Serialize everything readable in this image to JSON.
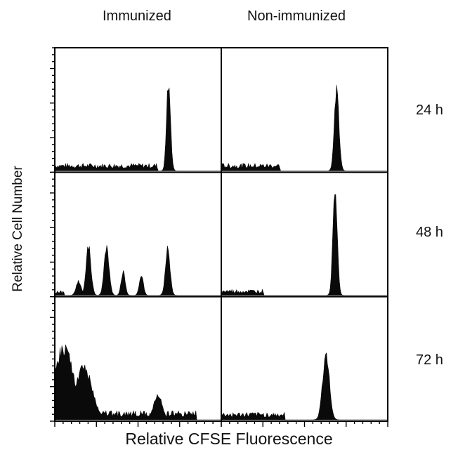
{
  "chart_data": {
    "type": "area",
    "description": "",
    "column_titles": [
      "Immunized",
      "Non-immunized"
    ],
    "row_labels": [
      "24 h",
      "48 h",
      "72 h"
    ],
    "xlabel": "Relative CFSE Fluorescence",
    "ylabel": "Relative Cell Number",
    "x_axis": "relative CFSE fluorescence, 0-1 across each panel (unlabeled ticks)",
    "y_axis": "relative cell number, 0-1 per panel (unlabeled ticks)",
    "panels": [
      {
        "column": "Immunized",
        "row": "24 h",
        "peaks": [
          {
            "x": 0.685,
            "height": 0.78,
            "width": 0.012
          }
        ],
        "baseline": 0.05,
        "baseline_range": [
          0.0,
          0.62
        ]
      },
      {
        "column": "Non-immunized",
        "row": "24 h",
        "peaks": [
          {
            "x": 0.695,
            "height": 0.7,
            "width": 0.014
          }
        ],
        "baseline": 0.05,
        "baseline_range": [
          0.0,
          0.35
        ]
      },
      {
        "column": "Immunized",
        "row": "48 h",
        "peaks": [
          {
            "x": 0.2,
            "height": 0.42,
            "width": 0.015
          },
          {
            "x": 0.31,
            "height": 0.42,
            "width": 0.015
          },
          {
            "x": 0.41,
            "height": 0.2,
            "width": 0.012
          },
          {
            "x": 0.52,
            "height": 0.18,
            "width": 0.012
          },
          {
            "x": 0.68,
            "height": 0.4,
            "width": 0.014
          },
          {
            "x": 0.14,
            "height": 0.12,
            "width": 0.015
          }
        ],
        "baseline": 0.03,
        "baseline_range": [
          0.0,
          0.05
        ]
      },
      {
        "column": "Non-immunized",
        "row": "48 h",
        "peaks": [
          {
            "x": 0.685,
            "height": 0.92,
            "width": 0.013
          }
        ],
        "baseline": 0.04,
        "baseline_range": [
          0.0,
          0.25
        ]
      },
      {
        "column": "Immunized",
        "row": "72 h",
        "peaks": [
          {
            "x": 0.05,
            "height": 0.62,
            "width": 0.06
          },
          {
            "x": 0.17,
            "height": 0.46,
            "width": 0.05
          },
          {
            "x": 0.62,
            "height": 0.22,
            "width": 0.025
          }
        ],
        "baseline": 0.06,
        "baseline_range": [
          0.0,
          0.85
        ]
      },
      {
        "column": "Non-immunized",
        "row": "72 h",
        "peaks": [
          {
            "x": 0.63,
            "height": 0.58,
            "width": 0.02
          }
        ],
        "baseline": 0.05,
        "baseline_range": [
          0.0,
          0.38
        ]
      }
    ]
  }
}
